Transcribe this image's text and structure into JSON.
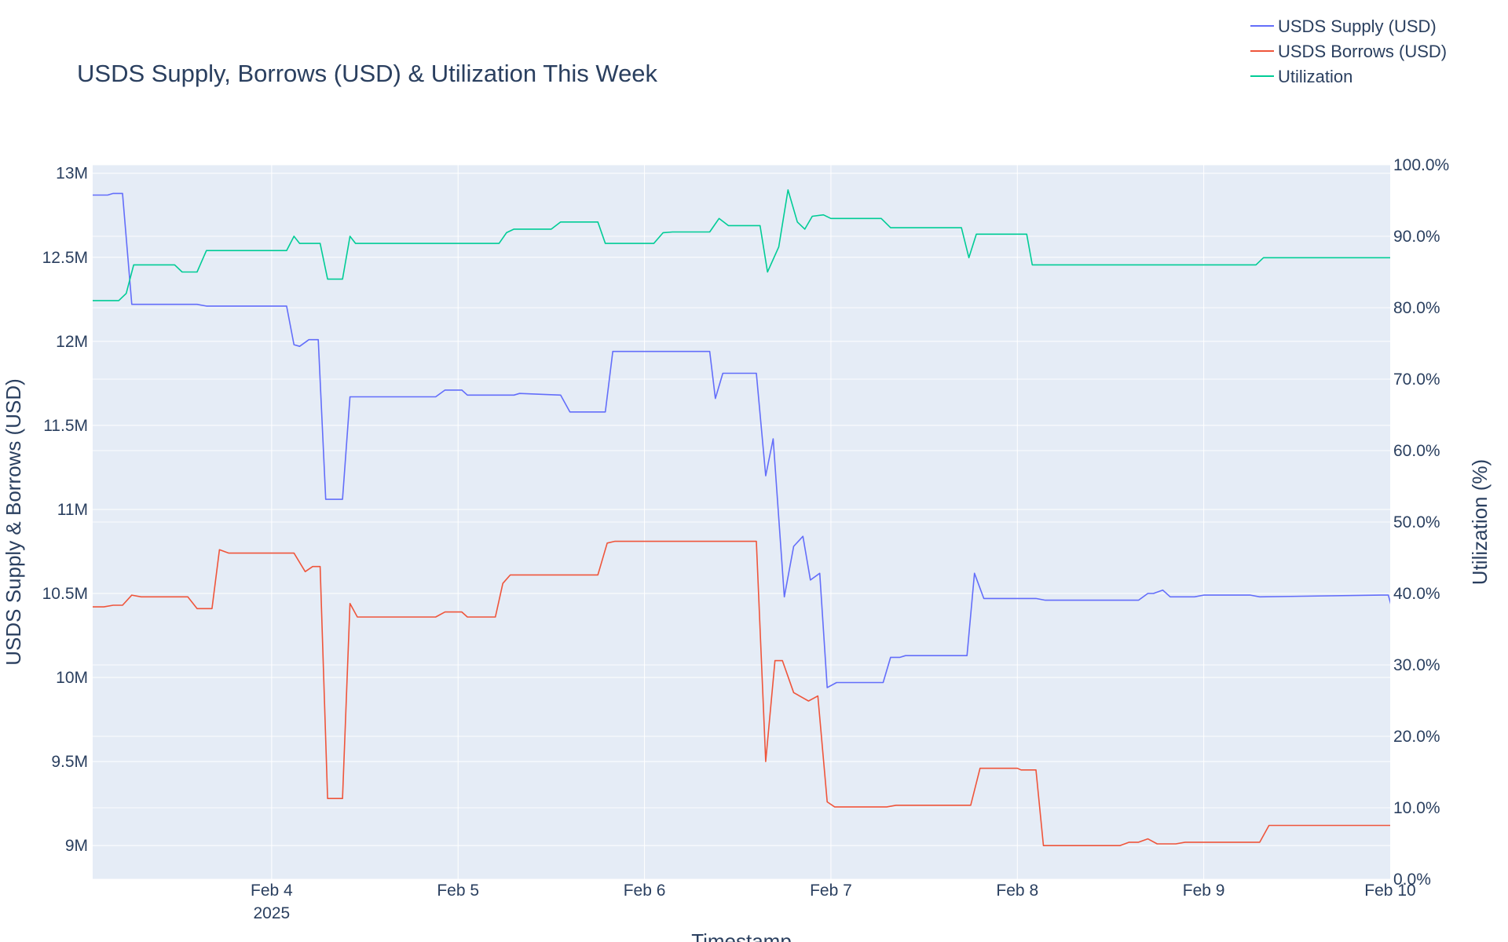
{
  "chart_data": {
    "type": "line",
    "title": "USDS Supply, Borrows (USD) & Utilization This Week",
    "xlabel": "Timestamp",
    "ylabel": "USDS Supply & Borrows (USD)",
    "y2label": "Utilization (%)",
    "x_ticks": [
      {
        "t": 3.0,
        "label": "Feb 4",
        "sub": "2025"
      },
      {
        "t": 4.0,
        "label": "Feb 5"
      },
      {
        "t": 5.0,
        "label": "Feb 6"
      },
      {
        "t": 6.0,
        "label": "Feb 7"
      },
      {
        "t": 7.0,
        "label": "Feb 8"
      },
      {
        "t": 8.0,
        "label": "Feb 9"
      },
      {
        "t": 9.0,
        "label": "Feb 10"
      }
    ],
    "x_note": "x values are days since Feb 1 2025 00:00 (t=3.0 is Feb 4)",
    "xlim": [
      2.04,
      9.0
    ],
    "y_ticks": [
      {
        "v": 9000000,
        "label": "9M"
      },
      {
        "v": 9500000,
        "label": "9.5M"
      },
      {
        "v": 10000000,
        "label": "10M"
      },
      {
        "v": 10500000,
        "label": "10.5M"
      },
      {
        "v": 11000000,
        "label": "11M"
      },
      {
        "v": 11500000,
        "label": "11.5M"
      },
      {
        "v": 12000000,
        "label": "12M"
      },
      {
        "v": 12500000,
        "label": "12.5M"
      },
      {
        "v": 13000000,
        "label": "13M"
      }
    ],
    "ylim": [
      8800000,
      13050000
    ],
    "y2_ticks": [
      {
        "v": 0,
        "label": "0.0%"
      },
      {
        "v": 10,
        "label": "10.0%"
      },
      {
        "v": 20,
        "label": "20.0%"
      },
      {
        "v": 30,
        "label": "30.0%"
      },
      {
        "v": 40,
        "label": "40.0%"
      },
      {
        "v": 50,
        "label": "50.0%"
      },
      {
        "v": 60,
        "label": "60.0%"
      },
      {
        "v": 70,
        "label": "70.0%"
      },
      {
        "v": 80,
        "label": "80.0%"
      },
      {
        "v": 90,
        "label": "90.0%"
      },
      {
        "v": 100,
        "label": "100.0%"
      }
    ],
    "y2lim": [
      0,
      100
    ],
    "grid": true,
    "legend_position": "top-right",
    "series": [
      {
        "name": "USDS Supply (USD)",
        "color": "#636efa",
        "axis": "y",
        "points": [
          [
            2.04,
            12870000
          ],
          [
            2.12,
            12870000
          ],
          [
            2.15,
            12880000
          ],
          [
            2.2,
            12880000
          ],
          [
            2.25,
            12220000
          ],
          [
            2.6,
            12220000
          ],
          [
            2.65,
            12210000
          ],
          [
            3.08,
            12210000
          ],
          [
            3.12,
            11980000
          ],
          [
            3.15,
            11970000
          ],
          [
            3.2,
            12010000
          ],
          [
            3.25,
            12010000
          ],
          [
            3.29,
            11060000
          ],
          [
            3.38,
            11060000
          ],
          [
            3.42,
            11670000
          ],
          [
            3.88,
            11670000
          ],
          [
            3.93,
            11710000
          ],
          [
            4.02,
            11710000
          ],
          [
            4.05,
            11680000
          ],
          [
            4.3,
            11680000
          ],
          [
            4.33,
            11690000
          ],
          [
            4.55,
            11680000
          ],
          [
            4.6,
            11580000
          ],
          [
            4.79,
            11580000
          ],
          [
            4.83,
            11940000
          ],
          [
            5.35,
            11940000
          ],
          [
            5.38,
            11660000
          ],
          [
            5.42,
            11810000
          ],
          [
            5.6,
            11810000
          ],
          [
            5.65,
            11200000
          ],
          [
            5.69,
            11420000
          ],
          [
            5.75,
            10480000
          ],
          [
            5.8,
            10780000
          ],
          [
            5.85,
            10840000
          ],
          [
            5.89,
            10580000
          ],
          [
            5.94,
            10620000
          ],
          [
            5.98,
            9940000
          ],
          [
            6.03,
            9970000
          ],
          [
            6.28,
            9970000
          ],
          [
            6.32,
            10120000
          ],
          [
            6.37,
            10120000
          ],
          [
            6.4,
            10130000
          ],
          [
            6.73,
            10130000
          ],
          [
            6.77,
            10620000
          ],
          [
            6.82,
            10470000
          ],
          [
            7.1,
            10470000
          ],
          [
            7.15,
            10460000
          ],
          [
            7.65,
            10460000
          ],
          [
            7.7,
            10500000
          ],
          [
            7.73,
            10500000
          ],
          [
            7.78,
            10520000
          ],
          [
            7.82,
            10480000
          ],
          [
            7.95,
            10480000
          ],
          [
            8.0,
            10490000
          ],
          [
            8.2,
            10490000
          ],
          [
            8.25,
            10490000
          ],
          [
            8.3,
            10480000
          ],
          [
            8.95,
            10490000
          ],
          [
            8.99,
            10490000
          ],
          [
            9.05,
            10250000
          ],
          [
            9.1,
            10250000
          ]
        ]
      },
      {
        "name": "USDS Borrows (USD)",
        "color": "#ef553b",
        "axis": "y",
        "points": [
          [
            2.04,
            10420000
          ],
          [
            2.1,
            10420000
          ],
          [
            2.15,
            10430000
          ],
          [
            2.2,
            10430000
          ],
          [
            2.25,
            10490000
          ],
          [
            2.3,
            10480000
          ],
          [
            2.55,
            10480000
          ],
          [
            2.6,
            10410000
          ],
          [
            2.68,
            10410000
          ],
          [
            2.72,
            10760000
          ],
          [
            2.77,
            10740000
          ],
          [
            3.12,
            10740000
          ],
          [
            3.18,
            10630000
          ],
          [
            3.22,
            10660000
          ],
          [
            3.26,
            10660000
          ],
          [
            3.3,
            9280000
          ],
          [
            3.38,
            9280000
          ],
          [
            3.42,
            10440000
          ],
          [
            3.46,
            10360000
          ],
          [
            3.88,
            10360000
          ],
          [
            3.93,
            10390000
          ],
          [
            4.02,
            10390000
          ],
          [
            4.05,
            10360000
          ],
          [
            4.2,
            10360000
          ],
          [
            4.24,
            10560000
          ],
          [
            4.28,
            10610000
          ],
          [
            4.75,
            10610000
          ],
          [
            4.8,
            10800000
          ],
          [
            4.84,
            10810000
          ],
          [
            5.25,
            10810000
          ],
          [
            5.6,
            10810000
          ],
          [
            5.65,
            9500000
          ],
          [
            5.7,
            10100000
          ],
          [
            5.74,
            10100000
          ],
          [
            5.8,
            9910000
          ],
          [
            5.88,
            9860000
          ],
          [
            5.93,
            9890000
          ],
          [
            5.98,
            9260000
          ],
          [
            6.02,
            9230000
          ],
          [
            6.3,
            9230000
          ],
          [
            6.35,
            9240000
          ],
          [
            6.75,
            9240000
          ],
          [
            6.8,
            9460000
          ],
          [
            7.0,
            9460000
          ],
          [
            7.02,
            9450000
          ],
          [
            7.1,
            9450000
          ],
          [
            7.14,
            9000000
          ],
          [
            7.55,
            9000000
          ],
          [
            7.6,
            9020000
          ],
          [
            7.65,
            9020000
          ],
          [
            7.7,
            9040000
          ],
          [
            7.75,
            9010000
          ],
          [
            7.85,
            9010000
          ],
          [
            7.9,
            9020000
          ],
          [
            8.3,
            9020000
          ],
          [
            8.35,
            9120000
          ],
          [
            8.5,
            9120000
          ],
          [
            8.55,
            9120000
          ],
          [
            8.6,
            9120000
          ],
          [
            9.1,
            9120000
          ]
        ]
      },
      {
        "name": "Utilization",
        "color": "#00cc96",
        "axis": "y2",
        "points": [
          [
            2.04,
            81
          ],
          [
            2.18,
            81
          ],
          [
            2.22,
            82
          ],
          [
            2.26,
            86
          ],
          [
            2.48,
            86
          ],
          [
            2.52,
            85
          ],
          [
            2.6,
            85
          ],
          [
            2.65,
            88
          ],
          [
            2.72,
            88
          ],
          [
            3.08,
            88
          ],
          [
            3.12,
            90
          ],
          [
            3.15,
            89
          ],
          [
            3.26,
            89
          ],
          [
            3.3,
            84
          ],
          [
            3.38,
            84
          ],
          [
            3.42,
            90
          ],
          [
            3.45,
            89
          ],
          [
            3.85,
            89
          ],
          [
            4.22,
            89
          ],
          [
            4.26,
            90.5
          ],
          [
            4.3,
            91
          ],
          [
            4.5,
            91
          ],
          [
            4.55,
            92
          ],
          [
            4.75,
            92
          ],
          [
            4.79,
            89
          ],
          [
            5.05,
            89
          ],
          [
            5.1,
            90.5
          ],
          [
            5.15,
            90.6
          ],
          [
            5.35,
            90.6
          ],
          [
            5.4,
            92.5
          ],
          [
            5.45,
            91.5
          ],
          [
            5.62,
            91.5
          ],
          [
            5.66,
            85
          ],
          [
            5.72,
            88.5
          ],
          [
            5.77,
            96.5
          ],
          [
            5.82,
            92
          ],
          [
            5.86,
            91
          ],
          [
            5.9,
            92.8
          ],
          [
            5.96,
            93
          ],
          [
            6.0,
            92.5
          ],
          [
            6.27,
            92.5
          ],
          [
            6.32,
            91.2
          ],
          [
            6.7,
            91.2
          ],
          [
            6.74,
            87
          ],
          [
            6.78,
            90.3
          ],
          [
            7.05,
            90.3
          ],
          [
            7.08,
            86
          ],
          [
            8.28,
            86
          ],
          [
            8.32,
            87
          ],
          [
            9.02,
            87
          ],
          [
            9.06,
            89
          ],
          [
            9.1,
            89
          ]
        ]
      }
    ]
  }
}
